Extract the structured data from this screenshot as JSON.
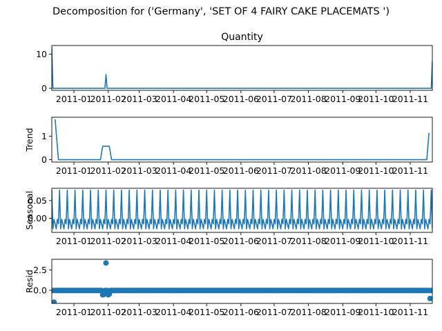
{
  "figure": {
    "suptitle": "Decomposition for ('Germany', 'SET OF 4 FAIRY CAKE PLACEMATS ')",
    "series_color": "#1f77b4"
  },
  "chart_data": [
    {
      "type": "line",
      "title": "Quantity",
      "ylabel": "",
      "x_range": [
        "2010-12-12",
        "2011-11-21"
      ],
      "ylim": [
        -0.6,
        12.5
      ],
      "yticks": [
        0,
        10
      ],
      "xtick_labels": [
        "2011-01",
        "2011-02",
        "2011-03",
        "2011-04",
        "2011-05",
        "2011-06",
        "2011-07",
        "2011-08",
        "2011-09",
        "2011-10",
        "2011-11"
      ],
      "points": [
        {
          "x": "2010-12-12",
          "y": 12
        },
        {
          "x": "2010-12-13",
          "y": 0
        },
        {
          "x": "2011-01-29",
          "y": 0
        },
        {
          "x": "2011-01-30",
          "y": 4
        },
        {
          "x": "2011-01-31",
          "y": 0
        },
        {
          "x": "2011-11-20",
          "y": 0
        },
        {
          "x": "2011-11-21",
          "y": 8
        }
      ]
    },
    {
      "type": "line",
      "title": "",
      "ylabel": "Trend",
      "x_range": [
        "2010-12-12",
        "2011-11-21"
      ],
      "ylim": [
        -0.1,
        1.8
      ],
      "yticks": [
        0,
        1
      ],
      "xtick_labels": [
        "2011-01",
        "2011-02",
        "2011-03",
        "2011-04",
        "2011-05",
        "2011-06",
        "2011-07",
        "2011-08",
        "2011-09",
        "2011-10",
        "2011-11"
      ],
      "points": [
        {
          "x": "2010-12-15",
          "y": 1.71
        },
        {
          "x": "2010-12-18",
          "y": 0
        },
        {
          "x": "2011-01-25",
          "y": 0
        },
        {
          "x": "2011-01-27",
          "y": 0.57
        },
        {
          "x": "2011-02-02",
          "y": 0.57
        },
        {
          "x": "2011-02-04",
          "y": 0
        },
        {
          "x": "2011-11-16",
          "y": 0
        },
        {
          "x": "2011-11-18",
          "y": 1.14
        }
      ]
    },
    {
      "type": "line",
      "title": "",
      "ylabel": "Seasonal",
      "x_range": [
        "2010-12-12",
        "2011-11-21"
      ],
      "ylim": [
        -0.04,
        0.085
      ],
      "yticks": [
        0.0,
        0.05
      ],
      "ytick_labels": [
        "0.00",
        "0.05"
      ],
      "xtick_labels": [
        "2011-01",
        "2011-02",
        "2011-03",
        "2011-04",
        "2011-05",
        "2011-06",
        "2011-07",
        "2011-08",
        "2011-09",
        "2011-10",
        "2011-11"
      ],
      "period_days": 7,
      "weekly_pattern": [
        0.08,
        -0.03,
        -0.003,
        -0.016,
        -0.03,
        -0.003,
        -0.016
      ]
    },
    {
      "type": "scatter",
      "title": "",
      "ylabel": "Resid",
      "x_range": [
        "2010-12-12",
        "2011-11-21"
      ],
      "ylim": [
        -1.6,
        3.8
      ],
      "yticks": [
        0.0,
        2.5
      ],
      "ytick_labels": [
        "0.0",
        "2.5"
      ],
      "xtick_labels": [
        "2011-01",
        "2011-02",
        "2011-03",
        "2011-04",
        "2011-05",
        "2011-06",
        "2011-07",
        "2011-08",
        "2011-09",
        "2011-10",
        "2011-11"
      ],
      "baseline": -0.02,
      "outliers": [
        {
          "x": "2010-12-14",
          "y": -1.45
        },
        {
          "x": "2011-01-27",
          "y": -0.55
        },
        {
          "x": "2011-01-28",
          "y": -0.5
        },
        {
          "x": "2011-01-30",
          "y": 3.35
        },
        {
          "x": "2011-02-01",
          "y": -0.55
        },
        {
          "x": "2011-02-02",
          "y": -0.45
        },
        {
          "x": "2011-11-19",
          "y": -1.0
        }
      ]
    }
  ]
}
